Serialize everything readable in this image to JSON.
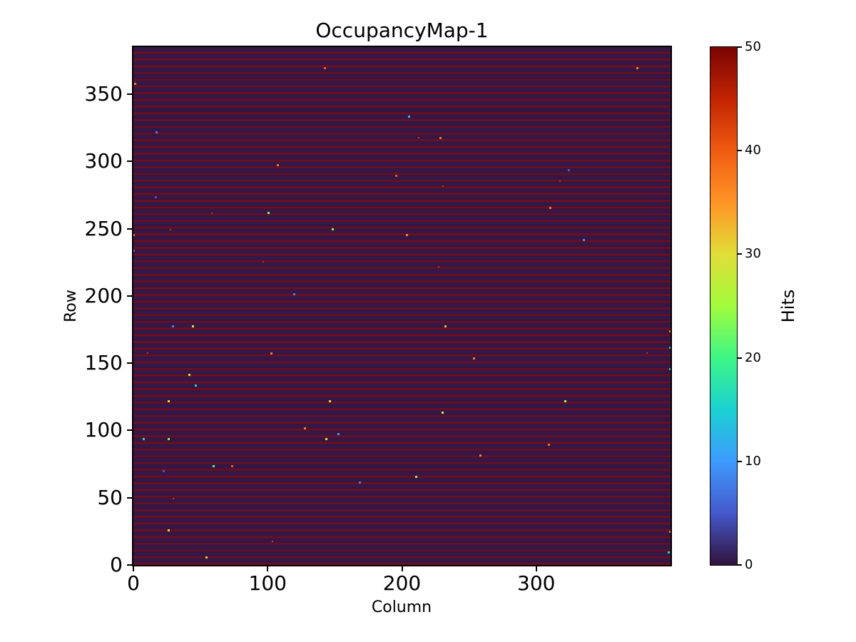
{
  "title": "OccupancyMap-1",
  "chart_data": {
    "type": "heatmap",
    "title": "OccupancyMap-1",
    "xlabel": "Column",
    "ylabel": "Row",
    "x_range": [
      0,
      400
    ],
    "y_range": [
      0,
      385
    ],
    "x_ticks": [
      0,
      100,
      200,
      300
    ],
    "y_ticks": [
      0,
      50,
      100,
      150,
      200,
      250,
      300,
      350
    ],
    "grid": false,
    "colorbar": {
      "label": "Hits",
      "min": 0,
      "max": 50,
      "ticks": [
        0,
        10,
        20,
        30,
        40,
        50
      ],
      "colormap": "turbo",
      "position": "right"
    },
    "colormap_stops": [
      {
        "t": 0.0,
        "color": "#30123b"
      },
      {
        "t": 0.1,
        "color": "#4458cb"
      },
      {
        "t": 0.2,
        "color": "#3e9bfe"
      },
      {
        "t": 0.3,
        "color": "#1ad1d2"
      },
      {
        "t": 0.4,
        "color": "#3df685"
      },
      {
        "t": 0.5,
        "color": "#a2fc3c"
      },
      {
        "t": 0.6,
        "color": "#e1dd37"
      },
      {
        "t": 0.7,
        "color": "#ff9426"
      },
      {
        "t": 0.8,
        "color": "#f05b12"
      },
      {
        "t": 0.9,
        "color": "#c22403"
      },
      {
        "t": 1.0,
        "color": "#7a0403"
      }
    ],
    "pattern": {
      "description": "near-zero background with hot rows (hits ~45-50) repeating every 5 rows, plus sparse outlier pixels",
      "background_value": 0,
      "hot_row_value": 47,
      "hot_row_period": 5
    },
    "display_colors": {
      "background_cell": "#331746",
      "hot_row_stripe": "#6d0e1d"
    },
    "outliers": [
      {
        "col": 1,
        "row": 357,
        "hits": 37
      },
      {
        "col": 142,
        "row": 369,
        "hits": 40
      },
      {
        "col": 17,
        "row": 321,
        "hits": 8
      },
      {
        "col": 107,
        "row": 297,
        "hits": 38
      },
      {
        "col": 195,
        "row": 289,
        "hits": 40
      },
      {
        "col": 16,
        "row": 273,
        "hits": 5
      },
      {
        "col": 58,
        "row": 261,
        "hits": 44
      },
      {
        "col": 100,
        "row": 261,
        "hits": 23
      },
      {
        "col": 27,
        "row": 249,
        "hits": 44
      },
      {
        "col": 148,
        "row": 249,
        "hits": 23
      },
      {
        "col": 0,
        "row": 245,
        "hits": 37
      },
      {
        "col": 0,
        "row": 233,
        "hits": 6
      },
      {
        "col": 96,
        "row": 225,
        "hits": 44
      },
      {
        "col": 119,
        "row": 201,
        "hits": 8
      },
      {
        "col": 375,
        "row": 369,
        "hits": 37
      },
      {
        "col": 205,
        "row": 333,
        "hits": 14
      },
      {
        "col": 228,
        "row": 317,
        "hits": 38
      },
      {
        "col": 212,
        "row": 317,
        "hits": 44
      },
      {
        "col": 324,
        "row": 293,
        "hits": 5
      },
      {
        "col": 317,
        "row": 285,
        "hits": 44
      },
      {
        "col": 230,
        "row": 281,
        "hits": 44
      },
      {
        "col": 310,
        "row": 265,
        "hits": 38
      },
      {
        "col": 203,
        "row": 245,
        "hits": 37
      },
      {
        "col": 335,
        "row": 241,
        "hits": 9
      },
      {
        "col": 227,
        "row": 221,
        "hits": 44
      },
      {
        "col": 29,
        "row": 177,
        "hits": 8
      },
      {
        "col": 44,
        "row": 177,
        "hits": 28
      },
      {
        "col": 232,
        "row": 177,
        "hits": 33
      },
      {
        "col": 399,
        "row": 173,
        "hits": 38
      },
      {
        "col": 399,
        "row": 161,
        "hits": 14
      },
      {
        "col": 102,
        "row": 157,
        "hits": 37
      },
      {
        "col": 10,
        "row": 157,
        "hits": 43
      },
      {
        "col": 382,
        "row": 157,
        "hits": 43
      },
      {
        "col": 253,
        "row": 153,
        "hits": 37
      },
      {
        "col": 399,
        "row": 145,
        "hits": 15
      },
      {
        "col": 41,
        "row": 141,
        "hits": 28
      },
      {
        "col": 46,
        "row": 133,
        "hits": 16
      },
      {
        "col": 26,
        "row": 121,
        "hits": 30
      },
      {
        "col": 146,
        "row": 121,
        "hits": 30
      },
      {
        "col": 321,
        "row": 121,
        "hits": 27
      },
      {
        "col": 230,
        "row": 113,
        "hits": 28
      },
      {
        "col": 127,
        "row": 101,
        "hits": 37
      },
      {
        "col": 152,
        "row": 97,
        "hits": 10
      },
      {
        "col": 7,
        "row": 93,
        "hits": 16
      },
      {
        "col": 26,
        "row": 93,
        "hits": 23
      },
      {
        "col": 143,
        "row": 93,
        "hits": 28
      },
      {
        "col": 309,
        "row": 89,
        "hits": 39
      },
      {
        "col": 258,
        "row": 81,
        "hits": 37
      },
      {
        "col": 59,
        "row": 73,
        "hits": 21
      },
      {
        "col": 73,
        "row": 73,
        "hits": 40
      },
      {
        "col": 22,
        "row": 69,
        "hits": 5
      },
      {
        "col": 210,
        "row": 65,
        "hits": 23
      },
      {
        "col": 168,
        "row": 61,
        "hits": 8
      },
      {
        "col": 29,
        "row": 49,
        "hits": 43
      },
      {
        "col": 26,
        "row": 25,
        "hits": 30
      },
      {
        "col": 399,
        "row": 24,
        "hits": 37
      },
      {
        "col": 103,
        "row": 17,
        "hits": 43
      },
      {
        "col": 398,
        "row": 9,
        "hits": 15
      },
      {
        "col": 54,
        "row": 5,
        "hits": 31
      }
    ]
  }
}
